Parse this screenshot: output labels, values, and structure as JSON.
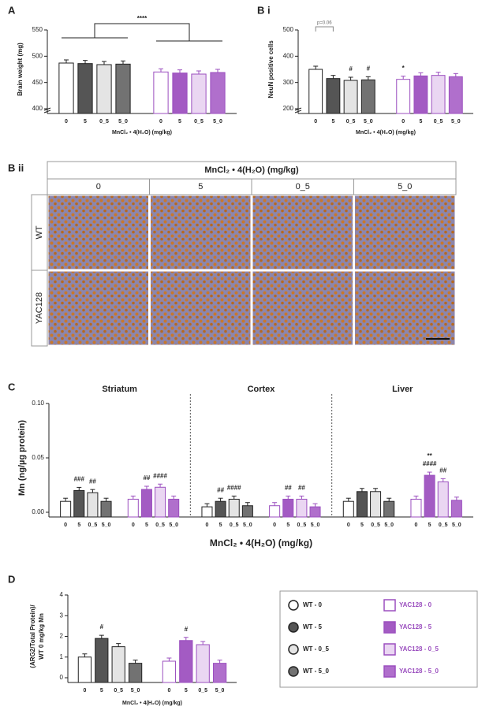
{
  "chart_data": [
    {
      "type": "bar",
      "panel_label": "A",
      "y_label": "Brain weight (mg)",
      "x_label": "MnCl₂ • 4(H₂O) (mg/kg)",
      "categories": [
        "0",
        "5",
        "0_5",
        "5_0",
        "0",
        "5",
        "0_5",
        "5_0"
      ],
      "values": [
        487,
        486,
        484,
        485,
        470,
        468,
        466,
        469
      ],
      "ylim": [
        400,
        550
      ],
      "yticks": [
        400,
        450,
        500,
        550
      ],
      "axis_break": true,
      "bracket_label": "****"
    },
    {
      "type": "bar",
      "panel_label": "B i",
      "y_label": "NeuN positive cells",
      "x_label": "MnCl₂ • 4(H₂O) (mg/kg)",
      "categories": [
        "0",
        "5",
        "0_5",
        "5_0",
        "0",
        "5",
        "0_5",
        "5_0"
      ],
      "values": [
        350,
        315,
        308,
        310,
        312,
        325,
        327,
        322
      ],
      "annotations": [
        null,
        null,
        "#",
        "#",
        "*",
        null,
        null,
        null
      ],
      "ylim": [
        200,
        500
      ],
      "yticks": [
        200,
        300,
        400,
        500
      ],
      "axis_break": true,
      "bracket_label": "p=0.06"
    },
    {
      "type": "grouped_bar",
      "panel_label": "C",
      "y_label": "Mn (ng/µg protein)",
      "x_label": "MnCl₂ • 4(H₂O) (mg/kg)",
      "categories": [
        "0",
        "5",
        "0_5",
        "5_0",
        "0",
        "5",
        "0_5",
        "5_0"
      ],
      "groups": [
        {
          "name": "Striatum",
          "values": [
            0.01,
            0.02,
            0.018,
            0.01,
            0.012,
            0.021,
            0.023,
            0.012
          ],
          "annotations": [
            null,
            "###",
            "##",
            null,
            null,
            "##",
            "####",
            null
          ]
        },
        {
          "name": "Cortex",
          "values": [
            0.005,
            0.01,
            0.012,
            0.006,
            0.006,
            0.012,
            0.012,
            0.005
          ],
          "annotations": [
            null,
            "##",
            "####",
            null,
            null,
            "##",
            "##",
            null
          ]
        },
        {
          "name": "Liver",
          "values": [
            0.01,
            0.019,
            0.019,
            0.01,
            0.012,
            0.034,
            0.028,
            0.011
          ],
          "annotations": [
            null,
            null,
            null,
            null,
            null,
            [
              "**",
              "####"
            ],
            "##",
            null
          ]
        }
      ],
      "ylim": [
        0,
        0.1
      ],
      "yticks": [
        {
          "value": 0,
          "label": "0.00"
        },
        {
          "value": 0.05,
          "label": "0.05"
        },
        {
          "value": 0.1,
          "label": "0.10"
        }
      ]
    },
    {
      "type": "bar",
      "panel_label": "D",
      "y_label": [
        "(ARG2/Total Protein)/",
        "WT 0 mg/kg Mn"
      ],
      "x_label": "MnCl₂ • 4(H₂O) (mg/kg)",
      "categories": [
        "0",
        "5",
        "0_5",
        "5_0",
        "0",
        "5",
        "0_5",
        "5_0"
      ],
      "values": [
        1.0,
        1.9,
        1.5,
        0.7,
        0.8,
        1.8,
        1.6,
        0.7
      ],
      "annotations": [
        null,
        "#",
        null,
        null,
        null,
        "#",
        null,
        null
      ],
      "ylim": [
        0,
        4
      ],
      "yticks": [
        0,
        1,
        2,
        3,
        4
      ]
    }
  ],
  "legend": {
    "entries": [
      {
        "name": "WT - 0",
        "fill": "#ffffff",
        "stroke": "#222222",
        "marker": "circle"
      },
      {
        "name": "WT - 5",
        "fill": "#555555",
        "stroke": "#222222",
        "marker": "circle"
      },
      {
        "name": "WT - 0_5",
        "fill": "#e4e4e4",
        "stroke": "#222222",
        "marker": "circle"
      },
      {
        "name": "WT - 5_0",
        "fill": "#727272",
        "stroke": "#222222",
        "marker": "circle"
      },
      {
        "name": "YAC128 - 0",
        "fill": "#ffffff",
        "stroke": "#9b4fbf",
        "marker": "square"
      },
      {
        "name": "YAC128 - 5",
        "fill": "#a35bc3",
        "stroke": "#9b4fbf",
        "marker": "square"
      },
      {
        "name": "YAC128 - 0_5",
        "fill": "#ead6f2",
        "stroke": "#9b4fbf",
        "marker": "square"
      },
      {
        "name": "YAC128 - 5_0",
        "fill": "#b06fcc",
        "stroke": "#9b4fbf",
        "marker": "square"
      }
    ]
  },
  "image_grid": {
    "panel_label": "B ii",
    "header": "MnCl₂ • 4(H₂O) (mg/kg)",
    "columns": [
      "0",
      "5",
      "0_5",
      "5_0"
    ],
    "rows": [
      "WT",
      "YAC128"
    ]
  }
}
